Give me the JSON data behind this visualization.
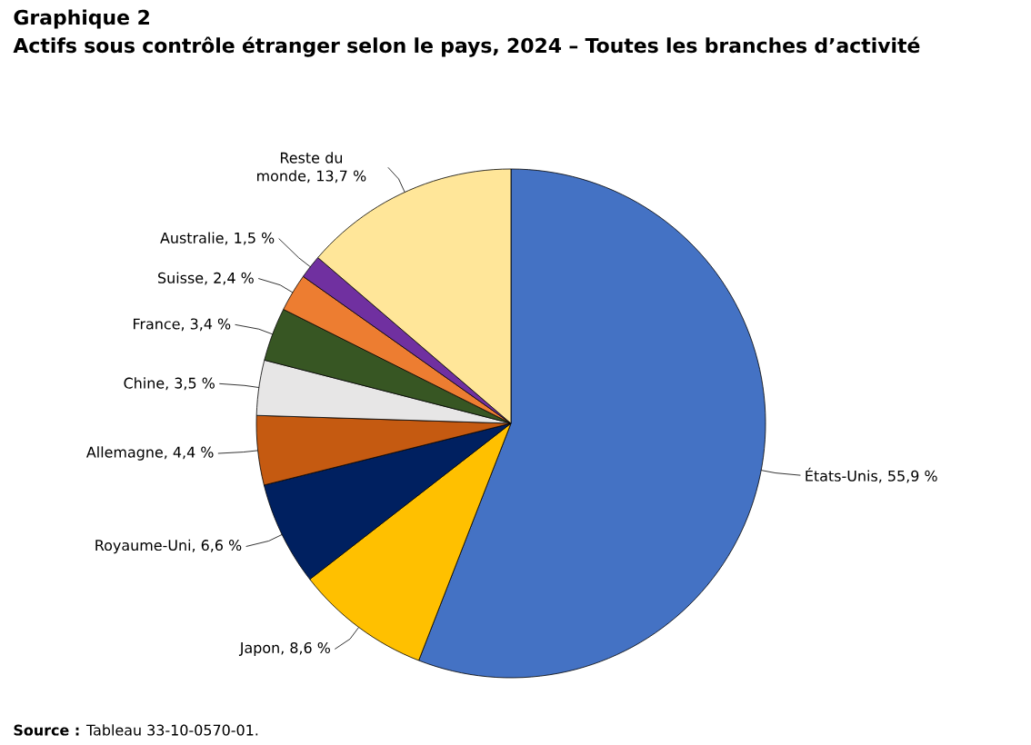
{
  "chart_data": {
    "type": "pie",
    "title": "Graphique 2",
    "subtitle": "Actifs sous contrôle étranger selon le pays, 2024 – Toutes les branches d’activité",
    "categories": [
      "États-Unis, 55,9 %",
      "Japon, 8,6 %",
      "Royaume-Uni, 6,6 %",
      "Allemagne, 4,4 %",
      "Chine, 3,5 %",
      "France, 3,4 %",
      "Suisse, 2,4 %",
      "Australie, 1,5 %",
      "Reste du monde, 13,7 %"
    ],
    "values": [
      55.9,
      8.6,
      6.6,
      4.4,
      3.5,
      3.4,
      2.4,
      1.5,
      13.7
    ],
    "colors": [
      "#4472c4",
      "#ffc000",
      "#002060",
      "#c55a11",
      "#e7e6e6",
      "#375623",
      "#ed7d31",
      "#7030a0",
      "#ffe699"
    ],
    "annotations": [
      "**Source :** Tableau 33-10-0570-01."
    ]
  }
}
